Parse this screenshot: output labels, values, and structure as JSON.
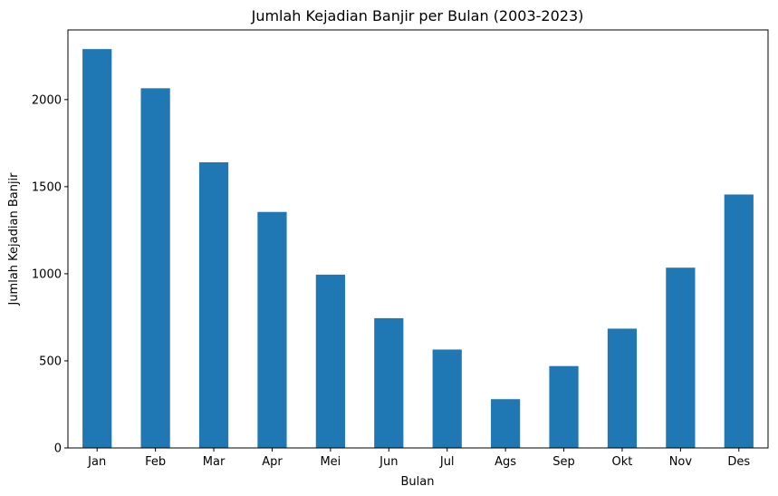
{
  "chart_data": {
    "type": "bar",
    "title": "Jumlah Kejadian Banjir per Bulan (2003-2023)",
    "xlabel": "Bulan",
    "ylabel": "Jumlah Kejadian Banjir",
    "categories": [
      "Jan",
      "Feb",
      "Mar",
      "Apr",
      "Mei",
      "Jun",
      "Jul",
      "Ags",
      "Sep",
      "Okt",
      "Nov",
      "Des"
    ],
    "values": [
      2290,
      2065,
      1640,
      1355,
      995,
      745,
      565,
      280,
      470,
      685,
      1035,
      1455
    ],
    "ylim": [
      0,
      2400
    ],
    "yticks": [
      0,
      500,
      1000,
      1500,
      2000
    ],
    "bar_color": "#1f77b4",
    "grid": false,
    "legend": "none"
  }
}
